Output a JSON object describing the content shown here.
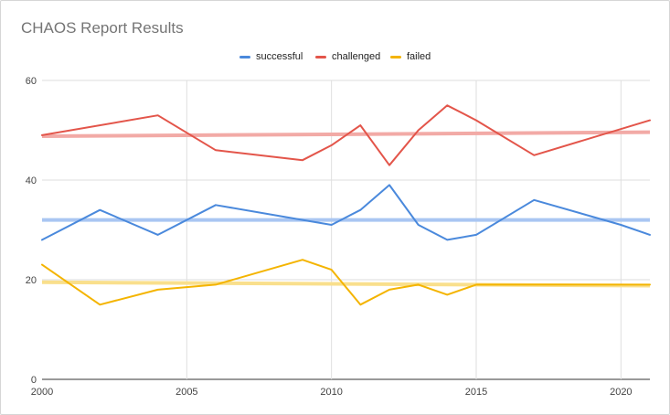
{
  "chart_data": {
    "type": "line",
    "title": "CHAOS Report Results",
    "xlabel": "",
    "ylabel": "",
    "xlim": [
      2000,
      2021
    ],
    "ylim": [
      0,
      60
    ],
    "x_ticks": [
      "2000",
      "2005",
      "2010",
      "2015",
      "2020"
    ],
    "y_ticks": [
      "0",
      "20",
      "40",
      "60"
    ],
    "grid": true,
    "legend_position": "top",
    "trendlines": true,
    "series": [
      {
        "name": "successful",
        "color": "#4a89dc",
        "trend_color": "#a9c6f2",
        "trend": [
          32,
          32
        ],
        "points": [
          [
            2000,
            28
          ],
          [
            2002,
            34
          ],
          [
            2004,
            29
          ],
          [
            2006,
            35
          ],
          [
            2009,
            32
          ],
          [
            2010,
            31
          ],
          [
            2011,
            34
          ],
          [
            2012,
            39
          ],
          [
            2013,
            31
          ],
          [
            2014,
            28
          ],
          [
            2015,
            29
          ],
          [
            2017,
            36
          ],
          [
            2020,
            31
          ],
          [
            2021,
            29
          ]
        ]
      },
      {
        "name": "challenged",
        "color": "#e3554a",
        "trend_color": "#f2aaa6",
        "trend": [
          48.8,
          49.6
        ],
        "points": [
          [
            2000,
            49
          ],
          [
            2004,
            53
          ],
          [
            2006,
            46
          ],
          [
            2009,
            44
          ],
          [
            2010,
            47
          ],
          [
            2011,
            51
          ],
          [
            2012,
            43
          ],
          [
            2013,
            50
          ],
          [
            2014,
            55
          ],
          [
            2015,
            52
          ],
          [
            2017,
            45
          ],
          [
            2021,
            52
          ]
        ]
      },
      {
        "name": "failed",
        "color": "#f4b400",
        "trend_color": "#f9df8c",
        "trend": [
          19.5,
          18.8
        ],
        "points": [
          [
            2000,
            23
          ],
          [
            2002,
            15
          ],
          [
            2004,
            18
          ],
          [
            2006,
            19
          ],
          [
            2009,
            24
          ],
          [
            2010,
            22
          ],
          [
            2011,
            15
          ],
          [
            2012,
            18
          ],
          [
            2013,
            19
          ],
          [
            2014,
            17
          ],
          [
            2015,
            19
          ],
          [
            2021,
            19
          ]
        ]
      }
    ]
  }
}
